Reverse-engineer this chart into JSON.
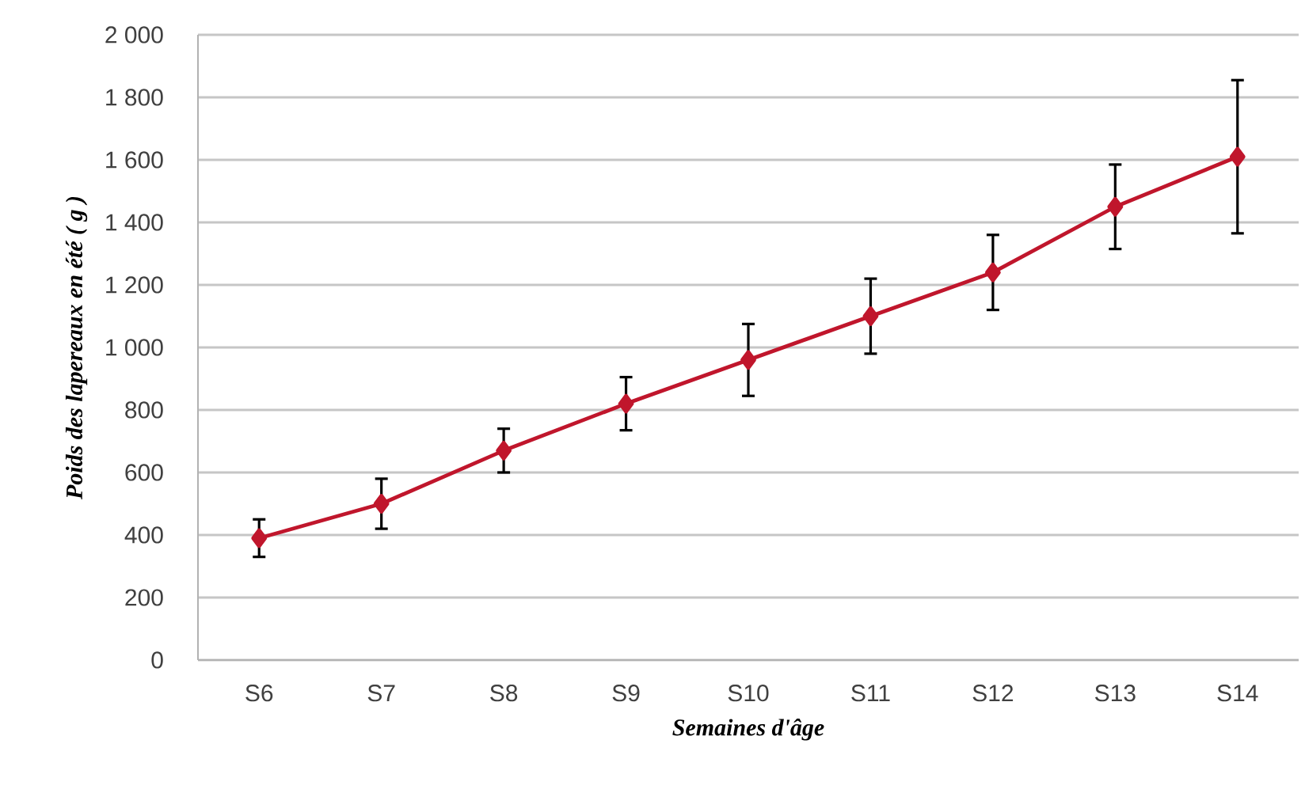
{
  "chart_data": {
    "type": "line",
    "xlabel": "Semaines d'âge",
    "ylabel": "Poids des lapereaux en été ( g )",
    "categories": [
      "S6",
      "S7",
      "S8",
      "S9",
      "S10",
      "S11",
      "S12",
      "S13",
      "S14"
    ],
    "series": [
      {
        "color": "#c0162c",
        "values": [
          390,
          500,
          670,
          820,
          960,
          1100,
          1240,
          1450,
          1610
        ],
        "errors": [
          60,
          80,
          70,
          85,
          115,
          120,
          120,
          135,
          245
        ]
      }
    ],
    "ylim": [
      0,
      2000
    ],
    "yticks": [
      0,
      200,
      400,
      600,
      800,
      {
        "value": 1000,
        "label": "1 000"
      },
      {
        "value": 1200,
        "label": "1 200"
      },
      {
        "value": 1400,
        "label": "1 400"
      },
      {
        "value": 1600,
        "label": "1 600"
      },
      {
        "value": 1800,
        "label": "1 800"
      },
      {
        "value": 2000,
        "label": "2 000"
      }
    ],
    "grid": "y",
    "marker": "diamond",
    "line_style": "solid"
  }
}
